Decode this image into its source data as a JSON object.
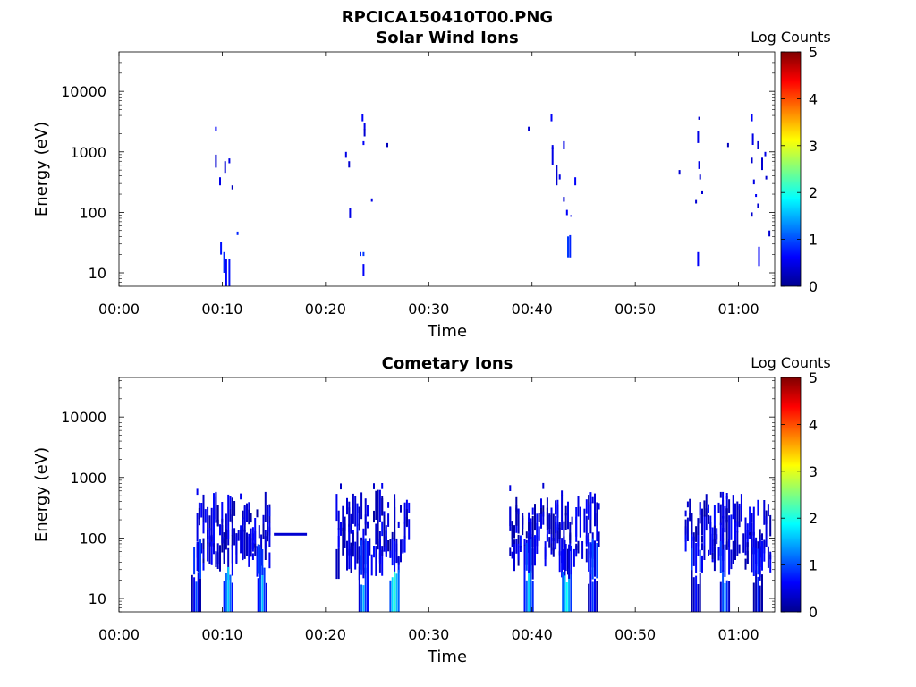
{
  "figure": {
    "title": "RPCICA150410T00.PNG"
  },
  "colormap": "jet",
  "chart_data": [
    {
      "type": "heatmap",
      "title": "Solar Wind Ions",
      "xlabel": "Time",
      "ylabel": "Energy (eV)",
      "colorbar_label": "Log Counts",
      "colorbar_range": [
        0,
        5
      ],
      "colorbar_ticks": [
        "0",
        "1",
        "2",
        "3",
        "4",
        "5"
      ],
      "y_scale": "log",
      "ylim": [
        6,
        45000
      ],
      "xlim_minutes": [
        0,
        63.5
      ],
      "x_ticks": [
        "00:00",
        "00:10",
        "00:20",
        "00:30",
        "00:40",
        "00:50",
        "01:00"
      ],
      "x_tick_minutes": [
        0,
        10,
        20,
        30,
        40,
        50,
        60
      ],
      "y_ticks": [
        "10",
        "100",
        "1000",
        "10000"
      ],
      "y_tick_values": [
        10,
        100,
        1000,
        10000
      ],
      "cells": [
        [
          9.3,
          2600,
          2200,
          0.6
        ],
        [
          9.3,
          900,
          550,
          0.4
        ],
        [
          9.7,
          380,
          280,
          0.5
        ],
        [
          9.8,
          32,
          20,
          0.7
        ],
        [
          10.1,
          22,
          10,
          0.8
        ],
        [
          10.3,
          17,
          6,
          0.6
        ],
        [
          10.6,
          17,
          6,
          0.7
        ],
        [
          10.2,
          700,
          450,
          0.4
        ],
        [
          10.6,
          780,
          650,
          0.5
        ],
        [
          10.9,
          280,
          240,
          0.3
        ],
        [
          11.4,
          48,
          42,
          0.8
        ],
        [
          21.9,
          1000,
          800,
          0.5
        ],
        [
          22.2,
          700,
          550,
          0.4
        ],
        [
          22.3,
          120,
          80,
          0.5
        ],
        [
          23.5,
          4200,
          3200,
          0.6
        ],
        [
          23.7,
          3000,
          2300,
          0.5
        ],
        [
          23.7,
          2400,
          1800,
          0.4
        ],
        [
          23.6,
          1500,
          1300,
          0.6
        ],
        [
          23.3,
          22,
          19,
          0.8
        ],
        [
          23.6,
          22,
          19,
          0.9
        ],
        [
          23.6,
          14,
          9,
          0.6
        ],
        [
          24.4,
          170,
          150,
          0.5
        ],
        [
          25.9,
          1400,
          1200,
          0.3
        ],
        [
          39.6,
          2600,
          2200,
          0.4
        ],
        [
          41.8,
          4200,
          3200,
          0.6
        ],
        [
          41.9,
          1300,
          1100,
          0.5
        ],
        [
          41.9,
          1200,
          600,
          0.5
        ],
        [
          42.3,
          600,
          280,
          0.4
        ],
        [
          42.6,
          420,
          350,
          0.5
        ],
        [
          43.0,
          1500,
          1100,
          0.5
        ],
        [
          43.0,
          180,
          150,
          0.4
        ],
        [
          43.3,
          110,
          90,
          0.6
        ],
        [
          43.4,
          40,
          18,
          0.9
        ],
        [
          43.6,
          42,
          18,
          0.8
        ],
        [
          43.7,
          90,
          85,
          0.5
        ],
        [
          44.1,
          380,
          280,
          0.6
        ],
        [
          54.2,
          500,
          420,
          0.4
        ],
        [
          55.8,
          160,
          140,
          0.4
        ],
        [
          56.1,
          3800,
          3400,
          0.4
        ],
        [
          56.0,
          2200,
          1400,
          0.5
        ],
        [
          56.1,
          700,
          520,
          0.5
        ],
        [
          56.2,
          420,
          350,
          0.4
        ],
        [
          56.4,
          230,
          200,
          0.4
        ],
        [
          56.0,
          22,
          13,
          0.6
        ],
        [
          58.9,
          1400,
          1200,
          0.3
        ],
        [
          61.2,
          4200,
          3200,
          0.6
        ],
        [
          61.3,
          2000,
          1300,
          0.5
        ],
        [
          61.8,
          1500,
          1100,
          0.4
        ],
        [
          61.2,
          800,
          650,
          0.4
        ],
        [
          61.4,
          350,
          290,
          0.5
        ],
        [
          61.6,
          200,
          180,
          0.6
        ],
        [
          61.8,
          140,
          120,
          0.4
        ],
        [
          62.2,
          800,
          500,
          0.4
        ],
        [
          62.5,
          1000,
          850,
          0.5
        ],
        [
          62.6,
          400,
          350,
          0.4
        ],
        [
          61.2,
          100,
          85,
          0.4
        ],
        [
          61.9,
          27,
          13,
          0.6
        ],
        [
          62.9,
          50,
          40,
          0.4
        ]
      ]
    },
    {
      "type": "heatmap",
      "title": "Cometary Ions",
      "xlabel": "Time",
      "ylabel": "Energy (eV)",
      "colorbar_label": "Log Counts",
      "colorbar_range": [
        0,
        5
      ],
      "colorbar_ticks": [
        "0",
        "1",
        "2",
        "3",
        "4",
        "5"
      ],
      "y_scale": "log",
      "ylim": [
        6,
        45000
      ],
      "xlim_minutes": [
        0,
        63.5
      ],
      "x_ticks": [
        "00:00",
        "00:10",
        "00:20",
        "00:30",
        "00:40",
        "00:50",
        "01:00"
      ],
      "x_tick_minutes": [
        0,
        10,
        20,
        30,
        40,
        50,
        60
      ],
      "y_ticks": [
        "10",
        "100",
        "1000",
        "10000"
      ],
      "y_tick_values": [
        10,
        100,
        1000,
        10000
      ],
      "bursts": [
        [
          7.5,
          14.6,
          11
        ],
        [
          21.0,
          28.0,
          22
        ],
        [
          37.8,
          46.5,
          33
        ],
        [
          54.8,
          63.2,
          44
        ]
      ],
      "cores": [
        [
          7.4,
          1.1
        ],
        [
          10.5,
          1.8
        ],
        [
          13.8,
          1.6
        ],
        [
          23.6,
          1.6
        ],
        [
          26.6,
          2.2
        ],
        [
          39.6,
          1.8
        ],
        [
          43.3,
          2.0
        ],
        [
          45.8,
          1.1
        ],
        [
          55.8,
          0.9
        ],
        [
          58.6,
          1.5
        ],
        [
          61.8,
          0.8
        ]
      ],
      "line_segment": {
        "t0": 15.0,
        "t1": 18.2,
        "energy": 115,
        "level": 0.4
      }
    }
  ]
}
